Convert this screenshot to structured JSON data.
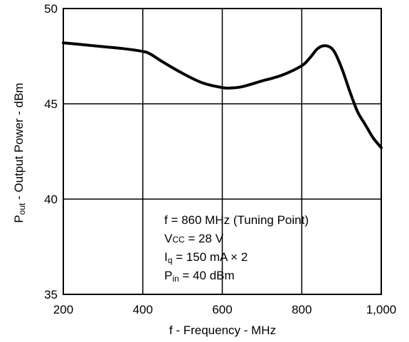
{
  "chart_data": {
    "type": "line",
    "xlabel": "f - Frequency - MHz",
    "ylabel": {
      "prefix": "P",
      "sub": "out",
      "suffix": " - Output Power - dBm"
    },
    "xlim": [
      200,
      1000
    ],
    "ylim": [
      35,
      50
    ],
    "x_ticks": [
      200,
      400,
      600,
      800,
      1000
    ],
    "x_tick_labels": [
      "200",
      "400",
      "600",
      "800",
      "1,000"
    ],
    "y_ticks": [
      35,
      40,
      45,
      50
    ],
    "y_tick_labels": [
      "35",
      "40",
      "45",
      "50"
    ],
    "grid": true,
    "line_color": "#000000",
    "series": [
      {
        "x": [
          200,
          250,
          300,
          350,
          400,
          420,
          450,
          500,
          550,
          600,
          620,
          650,
          700,
          750,
          800,
          820,
          840,
          860,
          880,
          900,
          920,
          940,
          960,
          980,
          1000
        ],
        "y": [
          48.2,
          48.1,
          48.0,
          47.9,
          47.75,
          47.6,
          47.2,
          46.6,
          46.1,
          45.85,
          45.83,
          45.9,
          46.2,
          46.5,
          47.0,
          47.4,
          47.9,
          48.05,
          47.8,
          46.9,
          45.7,
          44.6,
          43.9,
          43.2,
          42.7
        ]
      }
    ],
    "annotations": {
      "line1": "f = 860 MHz (Tuning Point)",
      "line2": {
        "main": "V",
        "sub": "CC",
        "rest": " = 28 V"
      },
      "line3": {
        "main": "I",
        "sub": "q",
        "rest": " = 150 mA × 2"
      },
      "line4": {
        "main": "P",
        "sub": "in",
        "rest": " = 40 dBm"
      }
    }
  }
}
